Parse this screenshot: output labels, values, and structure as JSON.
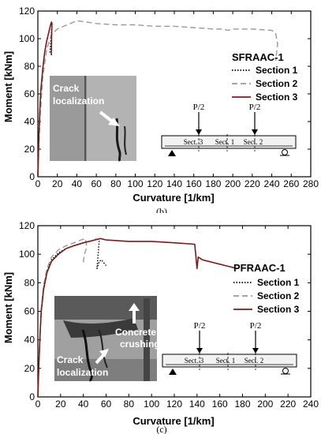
{
  "colors": {
    "section1": "#000000",
    "section2": "#999999",
    "section3": "#7a1c1c"
  },
  "chart_data": [
    {
      "type": "line",
      "panel": "b",
      "caption": "(b)",
      "specimen": "SFRAAC-1",
      "xlabel": "Curvature [1/km]",
      "ylabel": "Moment [kNm]",
      "xlim": [
        0,
        280
      ],
      "ylim": [
        0,
        120
      ],
      "xticks": [
        "0",
        "20",
        "40",
        "60",
        "80",
        "100",
        "120",
        "140",
        "160",
        "180",
        "200",
        "220",
        "240",
        "260",
        "280"
      ],
      "yticks": [
        "0",
        "20",
        "40",
        "60",
        "80",
        "100",
        "120"
      ],
      "legend": [
        "Section 1",
        "Section 2",
        "Section 3"
      ],
      "photo_label": [
        "Crack",
        "localization"
      ],
      "beam": {
        "load_left": "P/2",
        "load_right": "P/2",
        "sections": [
          "Sect. 3",
          "Sect. 1",
          "Sect. 2"
        ]
      },
      "series": [
        {
          "name": "Section 1",
          "style": "dotted",
          "x": [
            0,
            1,
            2,
            3,
            5,
            7,
            9,
            11,
            13,
            14,
            14.5,
            13.5,
            12.5
          ],
          "y": [
            0,
            28,
            48,
            62,
            78,
            90,
            98,
            104,
            110,
            112,
            111,
            100,
            90
          ]
        },
        {
          "name": "Section 2",
          "style": "dashed",
          "x": [
            0,
            2,
            5,
            9,
            14,
            20,
            30,
            40,
            50,
            60,
            80,
            100,
            120,
            140,
            160,
            180,
            190,
            195,
            200,
            220,
            240,
            244,
            246,
            244
          ],
          "y": [
            0,
            40,
            72,
            92,
            103,
            107,
            110,
            113,
            112,
            111,
            110,
            110,
            109,
            109,
            108,
            107,
            107,
            106,
            107,
            107,
            106,
            104,
            96,
            84
          ]
        },
        {
          "name": "Section 3",
          "style": "solid",
          "x": [
            0,
            1,
            2,
            3,
            5,
            7,
            9,
            11,
            13,
            14,
            14.5,
            14.2,
            13.8
          ],
          "y": [
            0,
            28,
            48,
            62,
            78,
            90,
            98,
            104,
            110,
            112,
            111,
            104,
            88
          ]
        }
      ]
    },
    {
      "type": "line",
      "panel": "c",
      "caption": "(c)",
      "specimen": "PFRAAC-1",
      "xlabel": "Curvature [1/km]",
      "ylabel": "Moment [kNm]",
      "xlim": [
        0,
        240
      ],
      "ylim": [
        0,
        120
      ],
      "xticks": [
        "0",
        "20",
        "40",
        "60",
        "80",
        "100",
        "120",
        "140",
        "160",
        "180",
        "200",
        "220",
        "240"
      ],
      "yticks": [
        "0",
        "20",
        "40",
        "60",
        "80",
        "100",
        "120"
      ],
      "legend": [
        "Section 1",
        "Section 2",
        "Section 3"
      ],
      "photo_label": [
        "Concrete",
        "crushing",
        "Crack",
        "localization"
      ],
      "beam": {
        "load_left": "P/2",
        "load_right": "P/2",
        "sections": [
          "Sect. 3",
          "Sect. 1",
          "Sect. 2"
        ]
      },
      "series": [
        {
          "name": "Section 1",
          "style": "dotted",
          "x": [
            0,
            1,
            2,
            3,
            5,
            8,
            12,
            18,
            25,
            32,
            40,
            46,
            50,
            52,
            54,
            53,
            52,
            54,
            56,
            58,
            60
          ],
          "y": [
            0,
            25,
            45,
            60,
            76,
            88,
            96,
            101,
            104,
            106,
            108,
            109,
            110,
            111,
            110,
            100,
            90,
            95,
            96,
            94,
            92
          ]
        },
        {
          "name": "Section 2",
          "style": "dashed",
          "x": [
            0,
            1,
            2,
            3,
            5,
            8,
            12,
            18,
            25,
            32,
            38,
            42,
            43,
            41,
            40,
            41
          ],
          "y": [
            0,
            25,
            45,
            62,
            78,
            90,
            98,
            103,
            106,
            108,
            110,
            111,
            105,
            100,
            95,
            93
          ]
        },
        {
          "name": "Section 3",
          "style": "solid",
          "x": [
            0,
            1,
            2,
            3,
            5,
            8,
            12,
            18,
            25,
            32,
            40,
            50,
            55,
            60,
            80,
            100,
            120,
            138,
            140,
            141,
            145,
            150,
            155,
            160,
            165,
            170,
            175
          ],
          "y": [
            0,
            25,
            45,
            60,
            75,
            87,
            95,
            100,
            104,
            106,
            108,
            110,
            111,
            110,
            109,
            109,
            108,
            107,
            90,
            98,
            96,
            95,
            94,
            93,
            92,
            91,
            90
          ]
        }
      ]
    }
  ]
}
